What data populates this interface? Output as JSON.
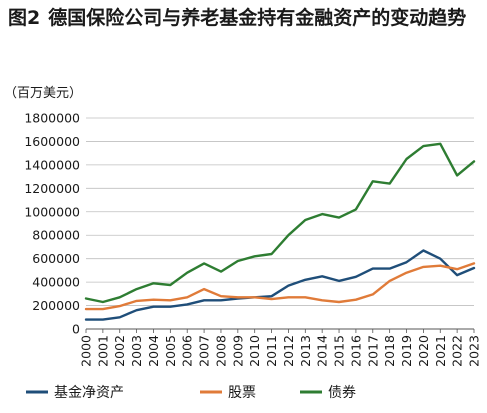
{
  "figure": {
    "number": "图2",
    "title": "德国保险公司与养老基金持有金融资产的变动趋势"
  },
  "chart_data": {
    "type": "line",
    "unit_label": "（百万美元）",
    "ylim": [
      0,
      1800000
    ],
    "yticks": [
      0,
      200000,
      400000,
      600000,
      800000,
      1000000,
      1200000,
      1400000,
      1600000,
      1800000
    ],
    "ytick_labels": [
      "0",
      "200000",
      "400000",
      "600000",
      "800000",
      "1000000",
      "1200000",
      "1400000",
      "1600000",
      "1800000"
    ],
    "x": [
      "2000",
      "2001",
      "2002",
      "2003",
      "2004",
      "2005",
      "2006",
      "2007",
      "2008",
      "2009",
      "2010",
      "2011",
      "2012",
      "2013",
      "2014",
      "2015",
      "2016",
      "2017",
      "2018",
      "2019",
      "2020",
      "2021",
      "2022",
      "2023"
    ],
    "grid": "horizontal",
    "legend_position": "bottom",
    "series": [
      {
        "name": "基金净资产",
        "color": "#1f4e79",
        "values": [
          80000,
          80000,
          100000,
          160000,
          190000,
          190000,
          210000,
          245000,
          245000,
          260000,
          270000,
          280000,
          370000,
          420000,
          450000,
          410000,
          445000,
          515000,
          515000,
          570000,
          670000,
          600000,
          460000,
          520000
        ]
      },
      {
        "name": "股票",
        "color": "#e07b39",
        "values": [
          170000,
          170000,
          195000,
          240000,
          250000,
          245000,
          270000,
          340000,
          280000,
          270000,
          270000,
          255000,
          270000,
          270000,
          245000,
          230000,
          250000,
          295000,
          410000,
          480000,
          530000,
          540000,
          510000,
          560000
        ]
      },
      {
        "name": "债券",
        "color": "#2e7d32",
        "values": [
          260000,
          230000,
          270000,
          340000,
          390000,
          375000,
          480000,
          560000,
          490000,
          580000,
          620000,
          640000,
          800000,
          930000,
          980000,
          950000,
          1020000,
          1260000,
          1240000,
          1450000,
          1560000,
          1580000,
          1310000,
          1430000
        ]
      }
    ]
  }
}
